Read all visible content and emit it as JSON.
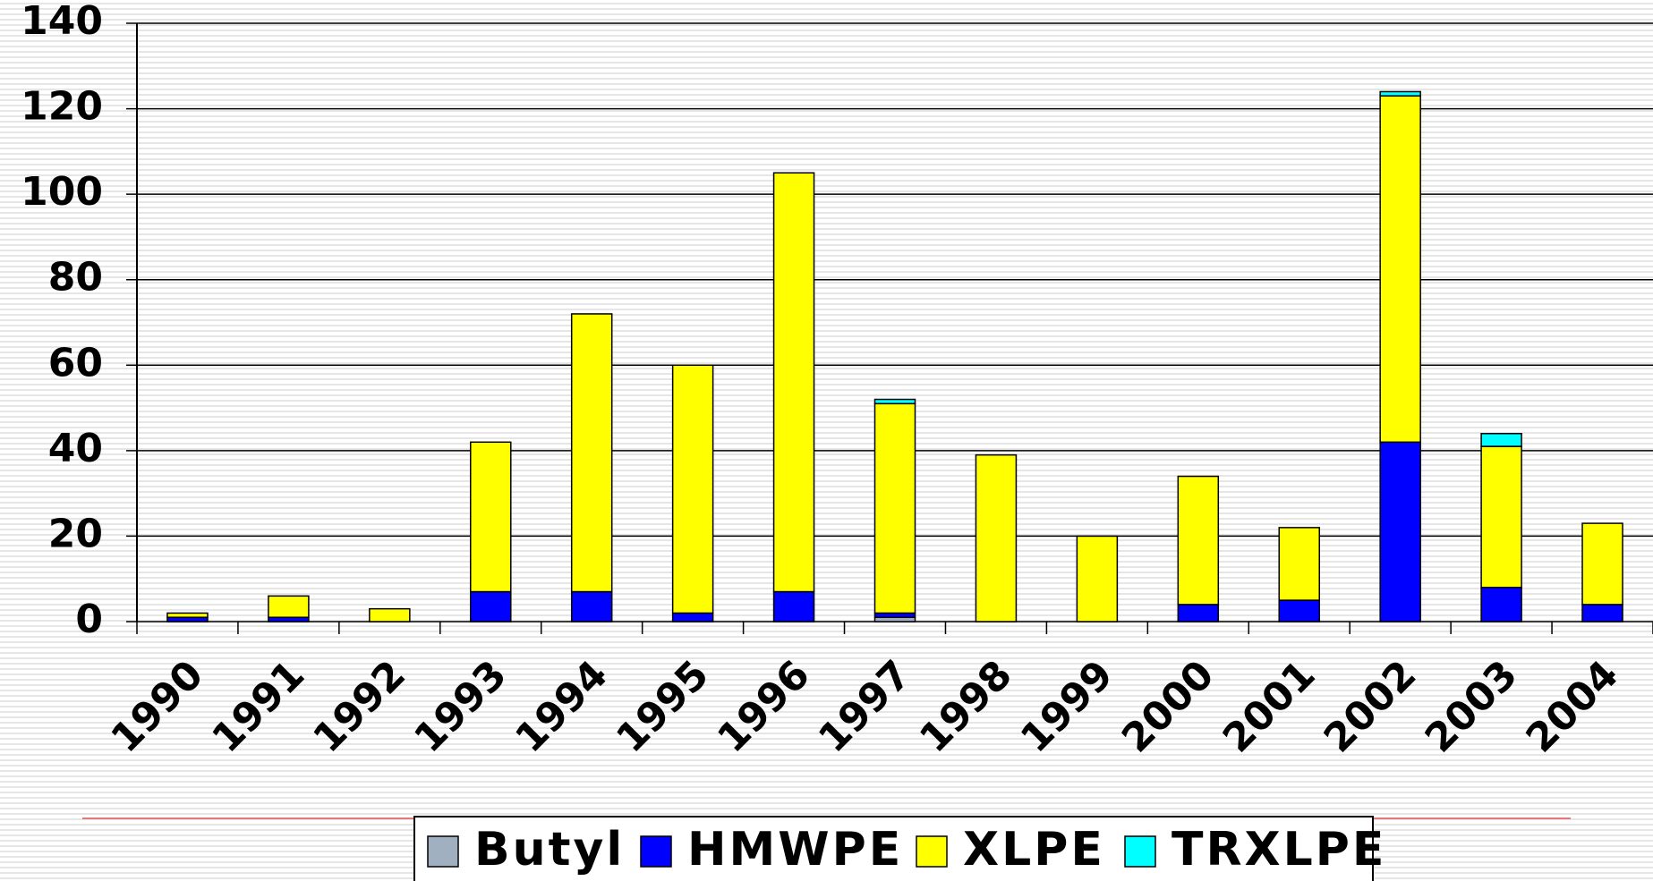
{
  "chart_data": {
    "type": "bar",
    "stacked": true,
    "categories": [
      "1990",
      "1991",
      "1992",
      "1993",
      "1994",
      "1995",
      "1996",
      "1997",
      "1998",
      "1999",
      "2000",
      "2001",
      "2002",
      "2003",
      "2004"
    ],
    "series": [
      {
        "name": "Butyl",
        "color": "#a0b0c0",
        "values": [
          0,
          0,
          0,
          0,
          0,
          0,
          0,
          1,
          0,
          0,
          0,
          0,
          0,
          0,
          0
        ]
      },
      {
        "name": "HMWPE",
        "color": "#0000ff",
        "values": [
          1,
          1,
          0,
          7,
          7,
          2,
          7,
          1,
          0,
          0,
          4,
          5,
          42,
          8,
          4
        ]
      },
      {
        "name": "XLPE",
        "color": "#ffff00",
        "values": [
          1,
          5,
          3,
          35,
          65,
          58,
          98,
          49,
          39,
          20,
          30,
          17,
          81,
          33,
          19
        ]
      },
      {
        "name": "TRXLPE",
        "color": "#00ffff",
        "values": [
          0,
          0,
          0,
          0,
          0,
          0,
          0,
          1,
          0,
          0,
          0,
          0,
          1,
          3,
          0
        ]
      }
    ],
    "ylim": [
      0,
      140
    ],
    "yticks": [
      0,
      20,
      40,
      60,
      80,
      100,
      120,
      140
    ],
    "grid": true,
    "legend": "bottom"
  }
}
